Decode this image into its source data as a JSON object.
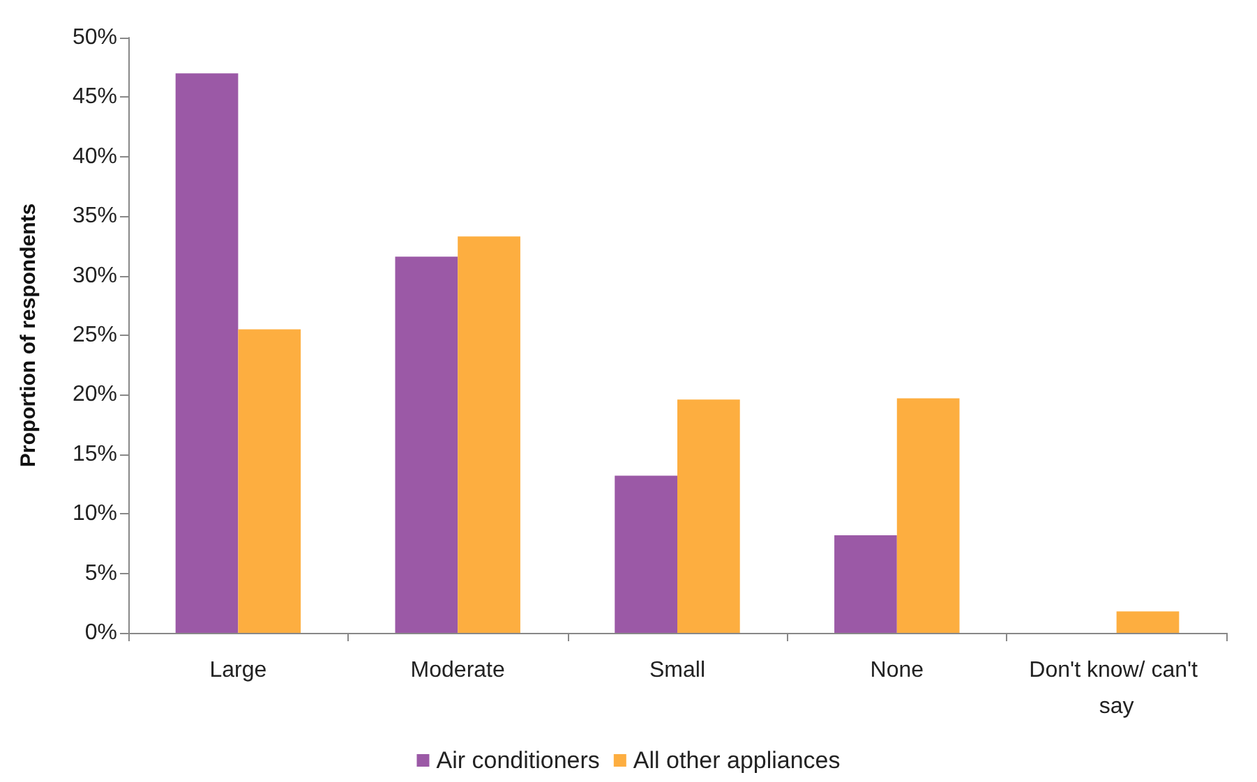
{
  "chart_data": {
    "type": "bar",
    "ylabel": "Proportion of respondents",
    "categories": [
      "Large",
      "Moderate",
      "Small",
      "None",
      "Don't know/ can't say"
    ],
    "series": [
      {
        "name": "Air conditioners",
        "color": "#9b59a6",
        "values": [
          47,
          31.6,
          13.2,
          8.2,
          0
        ]
      },
      {
        "name": "All other appliances",
        "color": "#fdae40",
        "values": [
          25.5,
          33.3,
          19.6,
          19.7,
          1.8
        ]
      }
    ],
    "ylim": [
      0,
      50
    ],
    "yticks": [
      {
        "value": 0,
        "label": "0%"
      },
      {
        "value": 5,
        "label": "5%"
      },
      {
        "value": 10,
        "label": "10%"
      },
      {
        "value": 15,
        "label": "15%"
      },
      {
        "value": 20,
        "label": "20%"
      },
      {
        "value": 25,
        "label": "25%"
      },
      {
        "value": 30,
        "label": "30%"
      },
      {
        "value": 35,
        "label": "35%"
      },
      {
        "value": 40,
        "label": "40%"
      },
      {
        "value": 45,
        "label": "45%"
      },
      {
        "value": 50,
        "label": "50%"
      }
    ],
    "grid": false,
    "legend": "bottom"
  }
}
